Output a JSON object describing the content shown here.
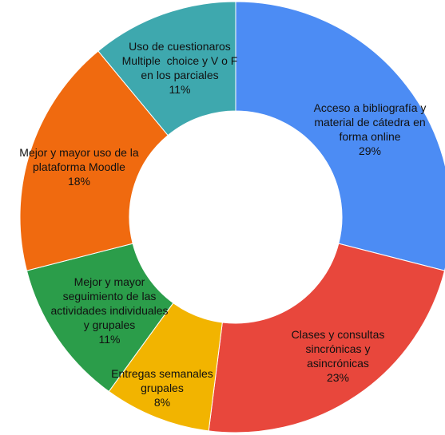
{
  "chart_data": {
    "type": "pie",
    "variant": "donut",
    "title": "",
    "slices": [
      {
        "label": "Acceso a bibliografía y material de cátedra en forma online",
        "label_lines": [
          "Acceso a bibliografía y",
          "material de cátedra en",
          "forma online"
        ],
        "value": 29,
        "value_label": "29%",
        "color": "#4c8cf4"
      },
      {
        "label": "Clases y consultas sincrónicas y asincrónicas",
        "label_lines": [
          "Clases y consultas",
          "sincrónicas y",
          "asincrónicas"
        ],
        "value": 23,
        "value_label": "23%",
        "color": "#e8473c"
      },
      {
        "label": "Entregas semanales grupales",
        "label_lines": [
          "Entregas semanales",
          "grupales"
        ],
        "value": 8,
        "value_label": "8%",
        "color": "#f2b400"
      },
      {
        "label": "Mejor y mayor seguimiento de las actividades individuales y grupales",
        "label_lines": [
          "Mejor y mayor",
          "seguimiento de las",
          "actividades individuales",
          "y grupales"
        ],
        "value": 11,
        "value_label": "11%",
        "color": "#2b9d4a"
      },
      {
        "label": "Mejor y mayor uso de la plataforma Moodle",
        "label_lines": [
          "Mejor y mayor uso de la",
          "plataforma Moodle"
        ],
        "value": 18,
        "value_label": "18%",
        "color": "#f06a0f"
      },
      {
        "label": "Uso de cuestionaros Multiple choice y V o F en los parciales",
        "label_lines": [
          "Uso de cuestionaros",
          "Multiple  choice y V o F",
          "en los parciales"
        ],
        "value": 11,
        "value_label": "11%",
        "color": "#3ea8ae"
      }
    ]
  }
}
